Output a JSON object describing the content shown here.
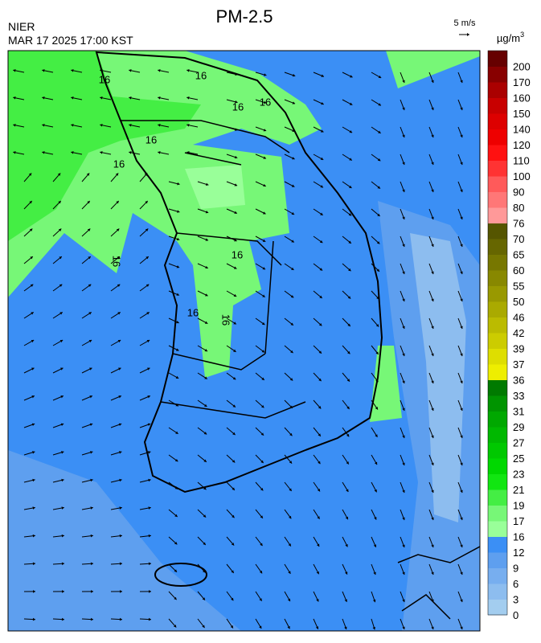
{
  "header": {
    "title": "PM-2.5",
    "source": "NIER",
    "datetime": "MAR 17 2025 17:00 KST",
    "wind_scale": "5 m/s"
  },
  "map": {
    "contour_labels": [
      "16",
      "16",
      "16",
      "16",
      "16",
      "16",
      "16",
      "16",
      "16",
      "16"
    ]
  },
  "colorbar": {
    "unit": "µg/m",
    "unit_exponent": "3",
    "ticks": [
      0,
      3,
      6,
      9,
      12,
      16,
      17,
      19,
      21,
      23,
      25,
      27,
      29,
      31,
      33,
      36,
      37,
      39,
      42,
      46,
      50,
      55,
      60,
      65,
      70,
      76,
      80,
      90,
      100,
      110,
      120,
      140,
      150,
      160,
      170,
      200
    ],
    "colors": [
      "#a3cdef",
      "#8dbdef",
      "#77aeef",
      "#5e9fef",
      "#3b8ff5",
      "#99ff99",
      "#77f777",
      "#44ee44",
      "#11e611",
      "#00d800",
      "#00c800",
      "#00b800",
      "#00a800",
      "#009400",
      "#007a00",
      "#eeee00",
      "#dede00",
      "#cccc00",
      "#bbbb00",
      "#aaaa00",
      "#999900",
      "#888800",
      "#777700",
      "#666600",
      "#555500",
      "#ff9999",
      "#ff7777",
      "#ff5a5a",
      "#ff3333",
      "#ff1111",
      "#ee0000",
      "#dd0000",
      "#c80000",
      "#aa0000",
      "#880000",
      "#660000"
    ]
  }
}
